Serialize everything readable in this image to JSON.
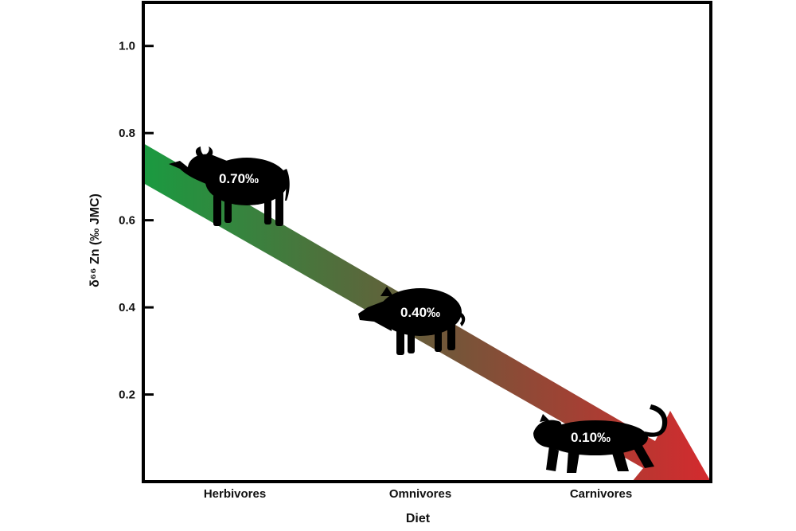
{
  "chart_data": {
    "type": "line",
    "xlabel": "Diet",
    "ylabel": "δ⁶⁶ Zn (‰ JMC)",
    "categories": [
      "Herbivores",
      "Omnivores",
      "Carnivores"
    ],
    "ylim": [
      0,
      1.1
    ],
    "yticks": [
      {
        "value": 0.2,
        "label": "0.2"
      },
      {
        "value": 0.4,
        "label": "0.4"
      },
      {
        "value": 0.6,
        "label": "0.6"
      },
      {
        "value": 0.8,
        "label": "0.8"
      },
      {
        "value": 1.0,
        "label": "1.0"
      }
    ],
    "grid": false,
    "points": [
      {
        "category": "Herbivores",
        "value": 0.7,
        "label": "0.70‰",
        "icon": "buffalo-icon"
      },
      {
        "category": "Omnivores",
        "value": 0.4,
        "label": "0.40‰",
        "icon": "boar-icon"
      },
      {
        "category": "Carnivores",
        "value": 0.1,
        "label": "0.10‰",
        "icon": "leopard-icon"
      }
    ],
    "arrow_colors": {
      "start": "#1a9a40",
      "middle": "#6b5a3a",
      "end": "#d42a2e"
    }
  }
}
